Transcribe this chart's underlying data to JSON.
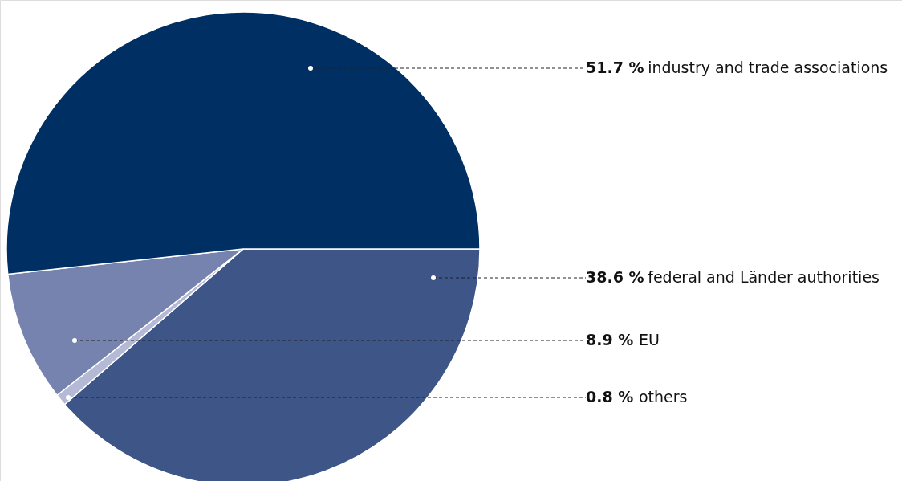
{
  "chart_data": {
    "type": "pie",
    "categories": [
      "federal and Länder authorities",
      "others",
      "EU",
      "industry and trade associations"
    ],
    "values": [
      38.6,
      0.8,
      8.9,
      51.7
    ],
    "value_labels": [
      "38.6 %",
      "0.8 %",
      "8.9 %",
      "51.7 %"
    ],
    "colors": [
      "#3d5587",
      "#b4bad6",
      "#7683ae",
      "#003063"
    ]
  }
}
